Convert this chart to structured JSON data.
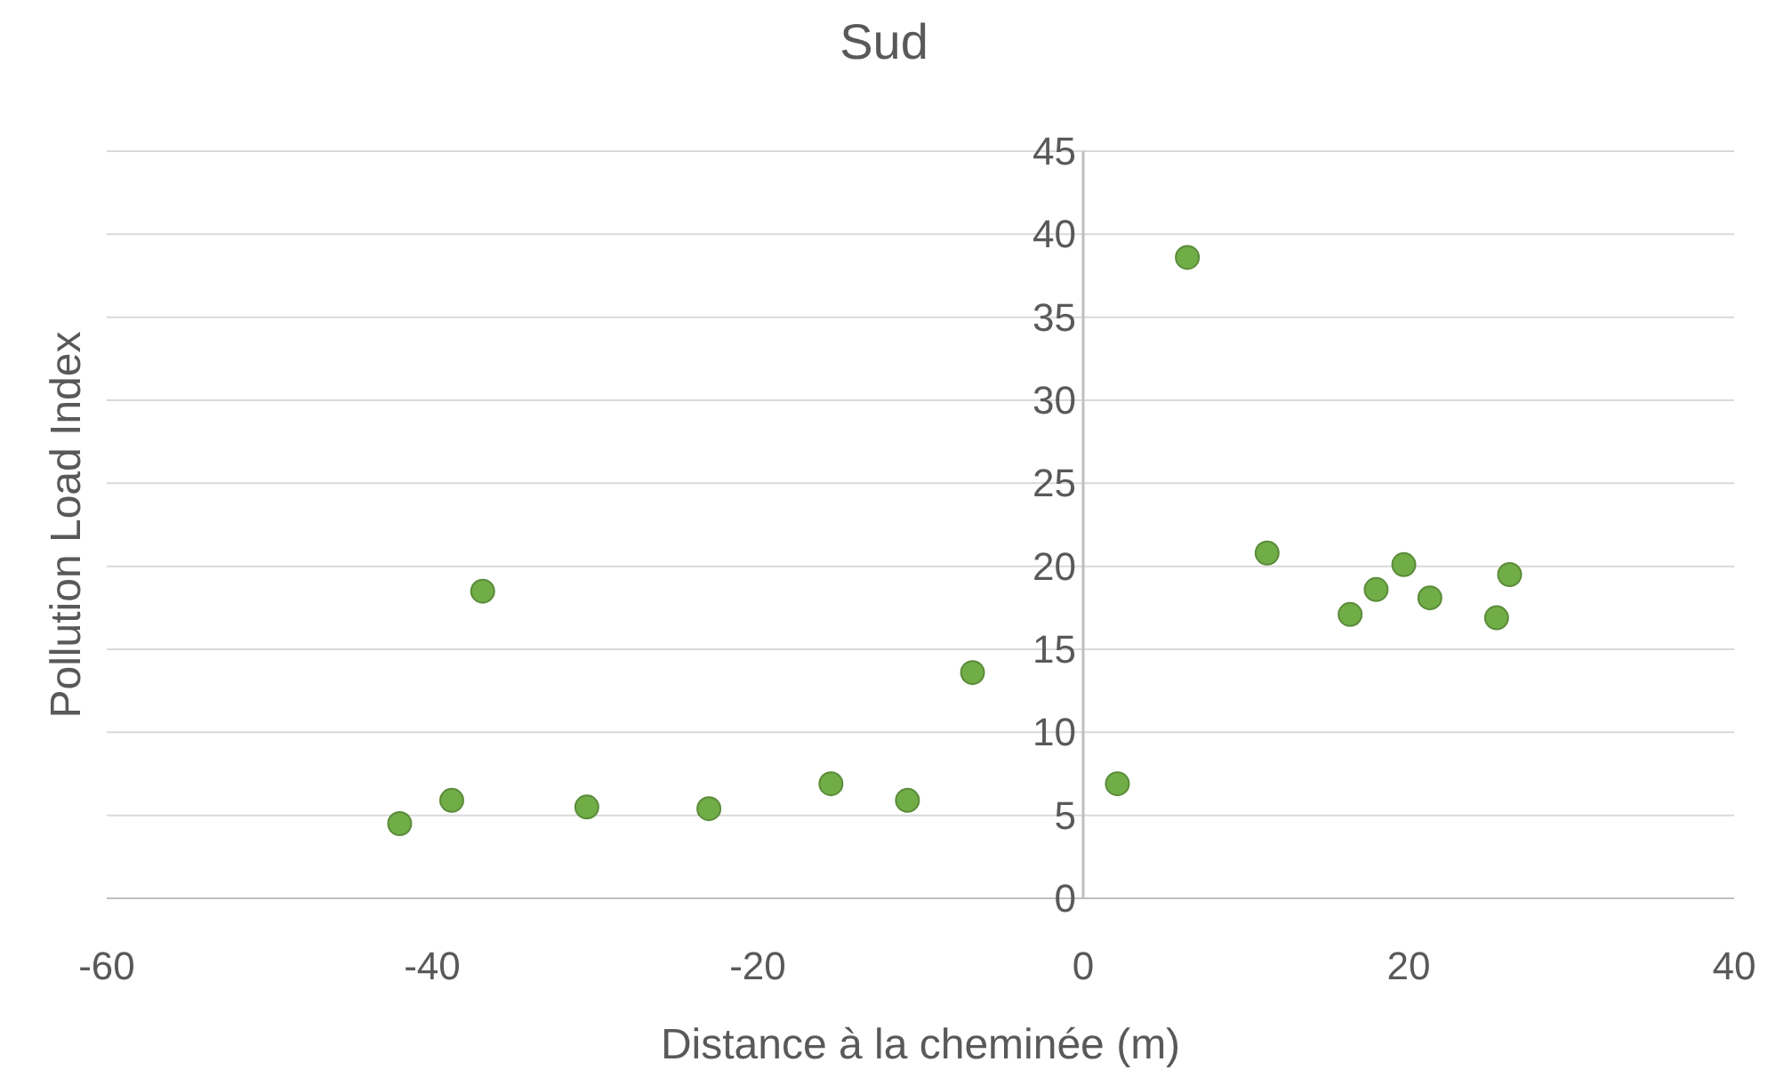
{
  "chart_data": {
    "type": "scatter",
    "title": "Sud",
    "xlabel": "Distance à la cheminée (m)",
    "ylabel": "Pollution Load Index",
    "x": [
      -42.0,
      -38.8,
      -36.9,
      -30.5,
      -23.0,
      -15.5,
      -10.8,
      -6.8,
      2.1,
      6.4,
      11.3,
      16.4,
      18.0,
      19.7,
      21.3,
      25.4,
      26.2
    ],
    "values": [
      4.5,
      5.9,
      18.5,
      5.5,
      5.4,
      6.9,
      5.9,
      13.6,
      6.9,
      38.6,
      20.8,
      17.1,
      18.6,
      20.1,
      18.1,
      16.9,
      19.5
    ],
    "color": "#70ad47",
    "marker": "circle",
    "xlim": [
      -60,
      40
    ],
    "xticks": [
      -60,
      -40,
      -20,
      0,
      20,
      40
    ],
    "ylim": [
      0,
      45
    ],
    "yticks": [
      0,
      5,
      10,
      15,
      20,
      25,
      30,
      35,
      40,
      45
    ],
    "grid": "y"
  }
}
